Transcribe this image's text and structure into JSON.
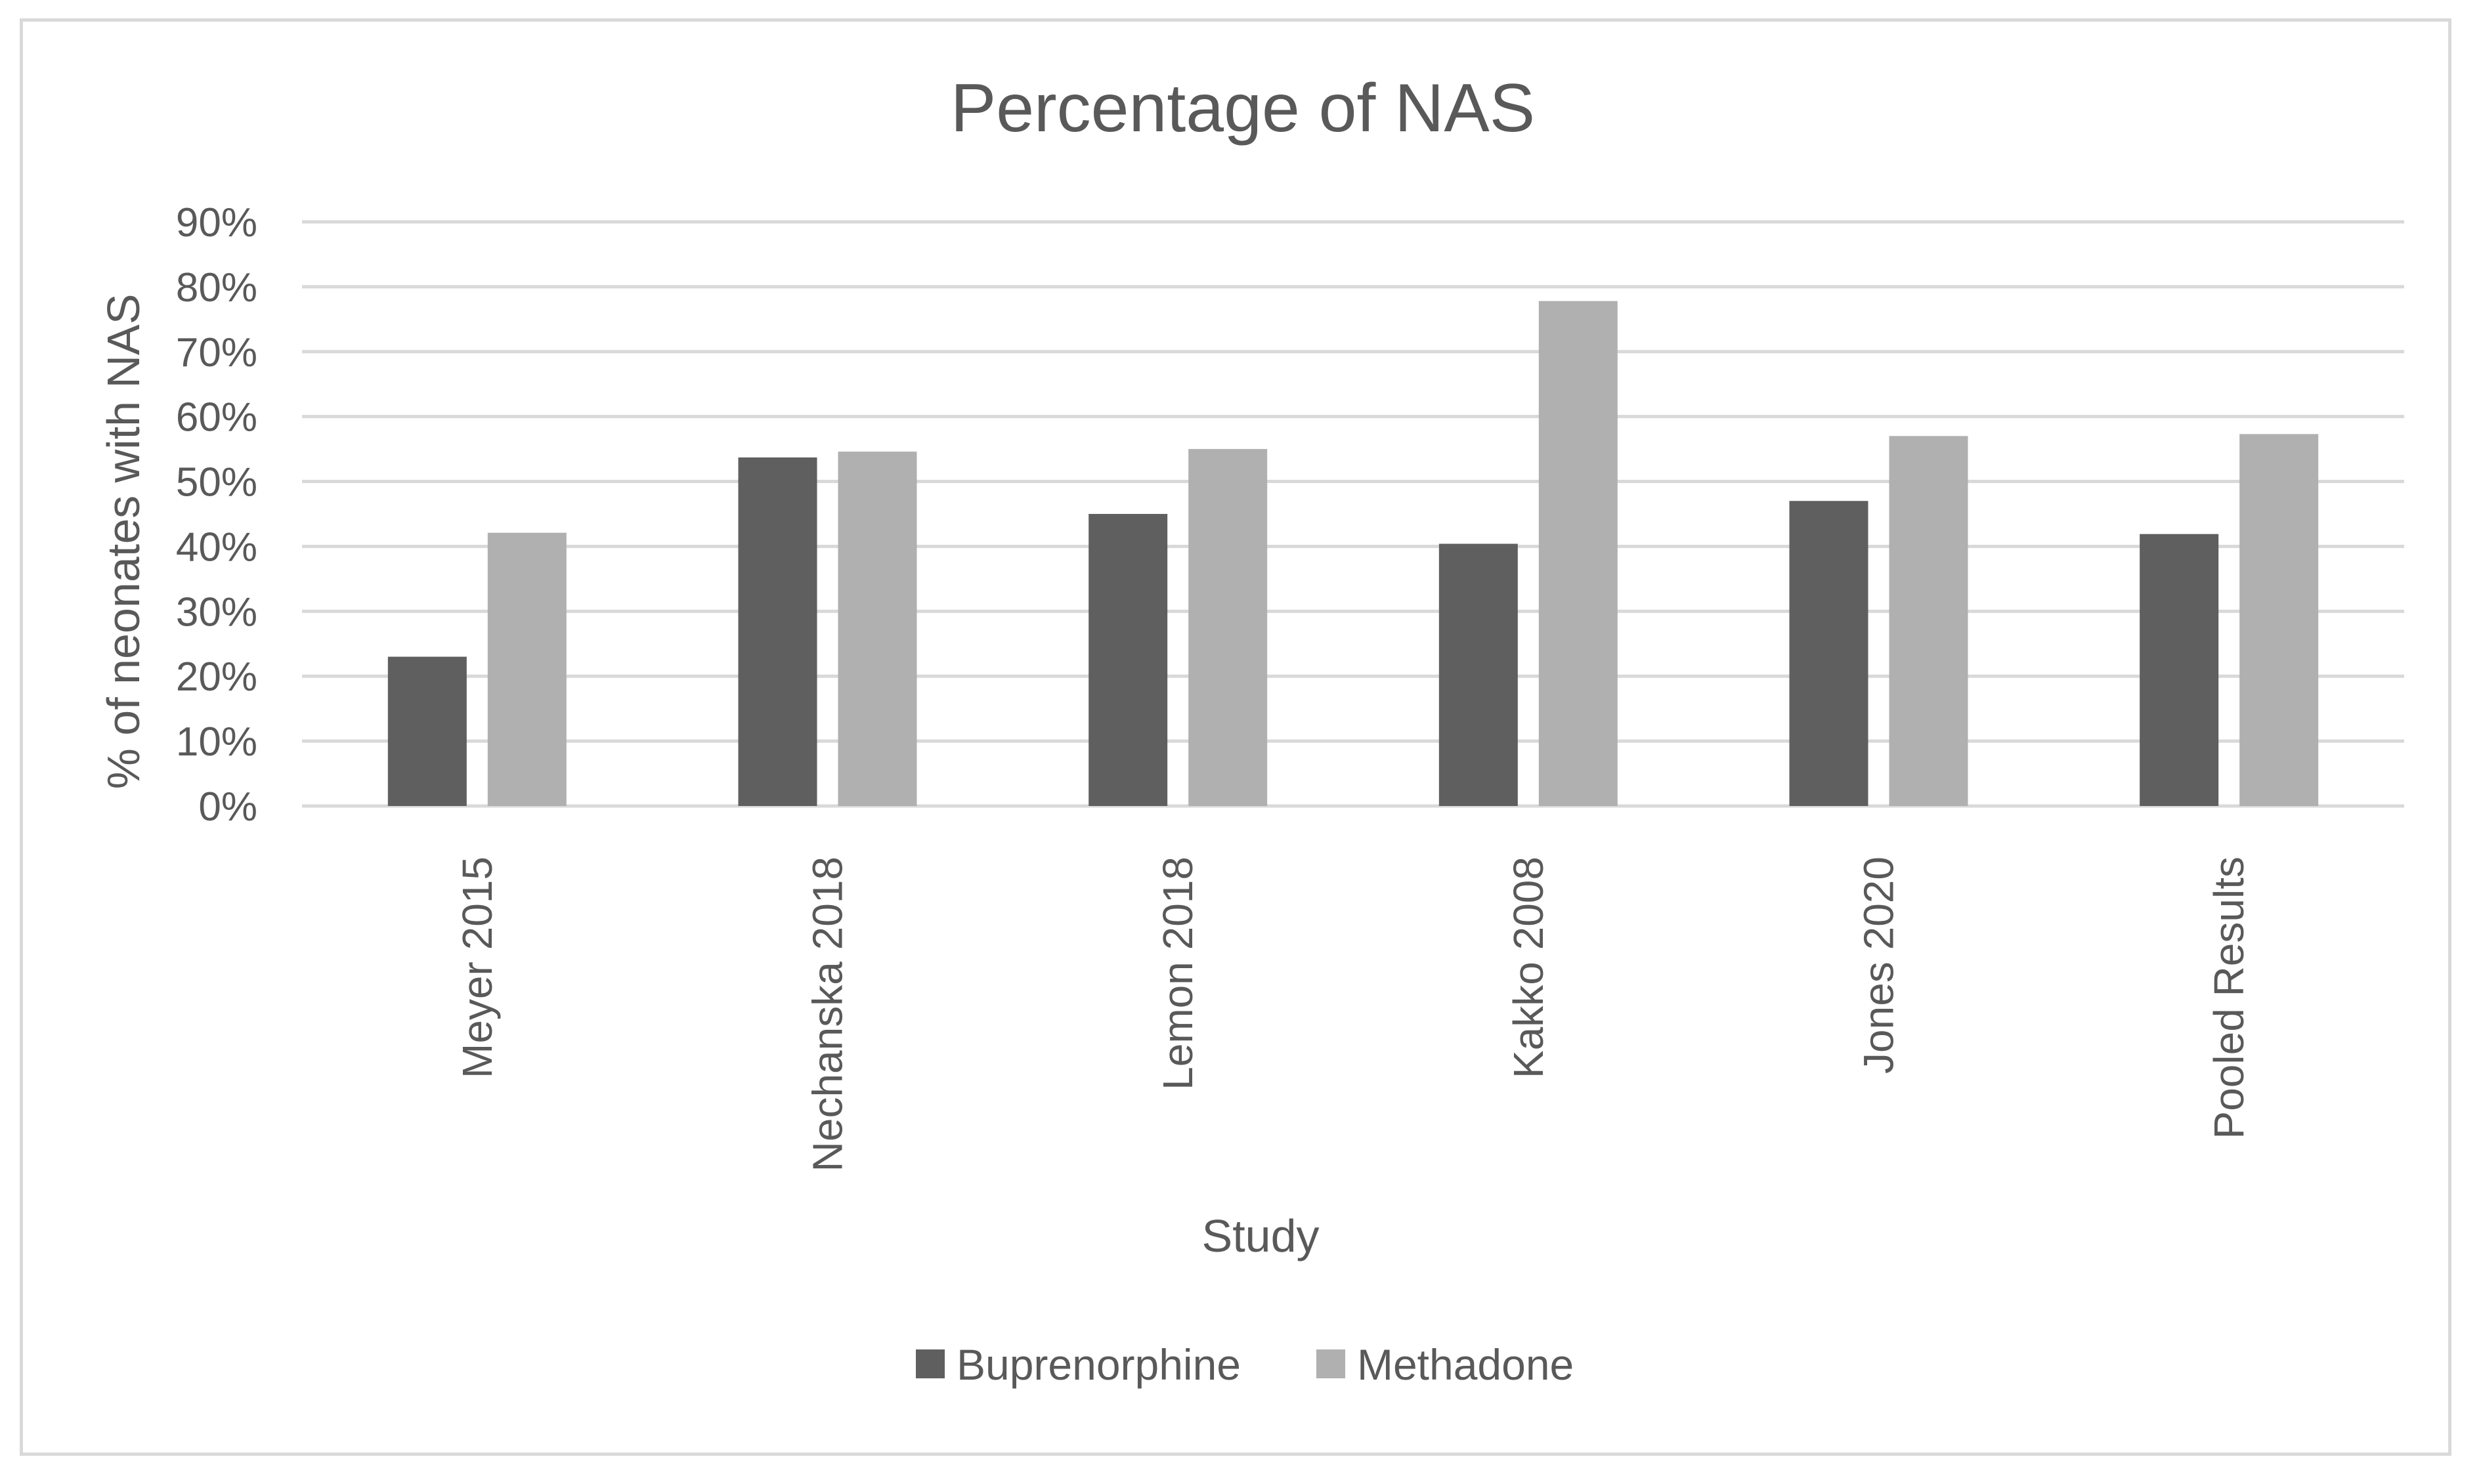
{
  "chart_data": {
    "type": "bar",
    "title": "Percentage of NAS",
    "xlabel": "Study",
    "ylabel": "% of neonates with NAS",
    "categories": [
      "Meyer 2015",
      "Nechanska 2018",
      "Lemon 2018",
      "Kakko 2008",
      "Jones 2020",
      "Pooled Results"
    ],
    "series": [
      {
        "name": "Buprenorphine",
        "color": "#5f5f5f",
        "values": [
          23,
          53.7,
          45,
          40.4,
          47,
          41.9
        ]
      },
      {
        "name": "Methadone",
        "color": "#b0b0b0",
        "values": [
          42.1,
          54.6,
          55,
          77.8,
          57,
          57.3
        ]
      }
    ],
    "ylim": [
      0,
      90
    ],
    "yticks": [
      0,
      10,
      20,
      30,
      40,
      50,
      60,
      70,
      80,
      90
    ],
    "ytick_format": "percent",
    "grid": true,
    "legend_position": "bottom"
  }
}
